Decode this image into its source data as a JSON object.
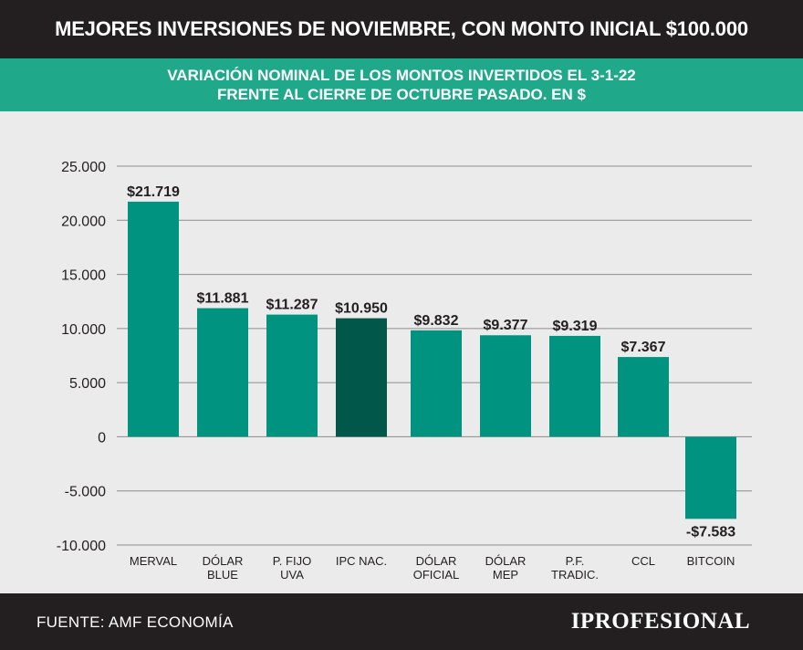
{
  "header": {
    "title": "MEJORES INVERSIONES DE NOVIEMBRE, CON MONTO INICIAL $100.000",
    "subtitle_line1": "VARIACIÓN NOMINAL DE LOS MONTOS INVERTIDOS EL 3-1-22",
    "subtitle_line2": "FRENTE AL CIERRE DE OCTUBRE PASADO. EN $"
  },
  "footer": {
    "source": "FUENTE: AMF ECONOMÍA",
    "logo": "IPROFESIONAL"
  },
  "colors": {
    "bar": "#009480",
    "highlight_bar": "#00574a",
    "teal_band": "#1fa88a",
    "dark_band": "#231f20"
  },
  "chart_data": {
    "type": "bar",
    "categories": [
      [
        "MERVAL"
      ],
      [
        "DÓLAR",
        "BLUE"
      ],
      [
        "P. FIJO",
        "UVA"
      ],
      [
        "IPC NAC."
      ],
      [
        "DÓLAR",
        "OFICIAL"
      ],
      [
        "DÓLAR",
        "MEP"
      ],
      [
        "P.F.",
        "TRADIC."
      ],
      [
        "CCL"
      ],
      [
        "BITCOIN"
      ]
    ],
    "values": [
      21719,
      11881,
      11287,
      10950,
      9832,
      9377,
      9319,
      7367,
      -7583
    ],
    "value_labels": [
      "$21.719",
      "$11.881",
      "$11.287",
      "$10.950",
      "$9.832",
      "$9.377",
      "$9.319",
      "$7.367",
      "-$7.583"
    ],
    "highlight_index": 3,
    "ylim": [
      -10000,
      25000
    ],
    "yticks": [
      25000,
      20000,
      15000,
      10000,
      5000,
      0,
      -5000,
      -10000
    ],
    "ytick_labels": [
      "25.000",
      "20.000",
      "15.000",
      "10.000",
      "5.000",
      "0",
      "-5.000",
      "-10.000"
    ],
    "grid": true,
    "xlabel": "",
    "ylabel": ""
  }
}
